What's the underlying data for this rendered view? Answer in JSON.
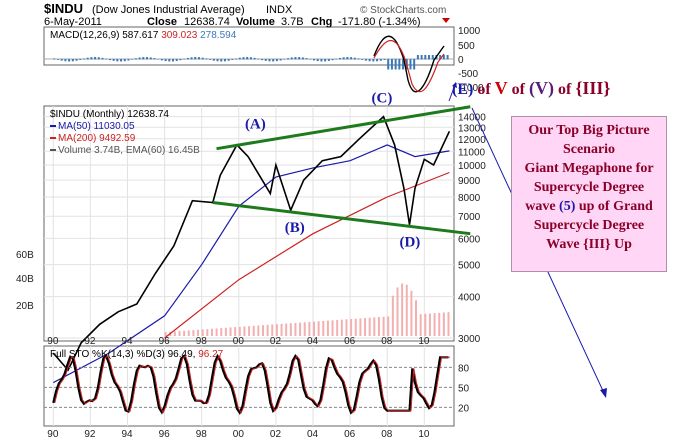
{
  "header": {
    "symbol": "$INDU",
    "name": "(Dow Jones Industrial Average)",
    "exchange": "INDX",
    "watermark": "© StockCharts.com",
    "date": "6-May-2011",
    "close_label": "Close",
    "close_value": "12638.74",
    "volume_label": "Volume",
    "volume_value": "3.7B",
    "chg_label": "Chg",
    "chg_value": "-171.80 (-1.34%)",
    "chg_color": "#cc0000"
  },
  "macd_panel": {
    "label": "MACD(12,26,9)",
    "macd": "587.617",
    "signal": "309.023",
    "hist": "278.594",
    "ticks": [
      "1000",
      "500",
      "0",
      "-500",
      "-1000"
    ]
  },
  "price_panel": {
    "legend": [
      {
        "text": "$INDU (Monthly) 12638.74",
        "color": "#000000"
      },
      {
        "text": "MA(50) 11030.05",
        "color": "#1a1aa8"
      },
      {
        "text": "MA(200) 9492.59",
        "color": "#cc2222"
      },
      {
        "text": "Volume 3.74B, EMA(60) 16.45B",
        "color": "#555555"
      }
    ],
    "price_ticks": [
      "14000",
      "13000",
      "12000",
      "11000",
      "10000",
      "9000",
      "8000",
      "7000",
      "6000",
      "5000",
      "4000",
      "3000"
    ],
    "volume_ticks": [
      "60B",
      "40B",
      "20B"
    ]
  },
  "chart_data": {
    "type": "line",
    "title": "$INDU (Dow Jones Industrial Average)",
    "x_ticks": [
      "90",
      "92",
      "94",
      "96",
      "98",
      "00",
      "02",
      "04",
      "06",
      "08",
      "10"
    ],
    "price_series": {
      "name": "$INDU (Monthly)",
      "x": [
        1990,
        1990.8,
        1991.5,
        1992.5,
        1993.5,
        1994.5,
        1995.5,
        1996.5,
        1997.5,
        1998.6,
        1999,
        1999.9,
        2000.5,
        2001.7,
        2002,
        2002.8,
        2003.5,
        2004.5,
        2005.5,
        2006.5,
        2007.8,
        2008.4,
        2008.9,
        2009.2,
        2009.5,
        2010,
        2010.5,
        2011.35
      ],
      "values": [
        2700,
        2400,
        2900,
        3300,
        3600,
        3800,
        4700,
        5700,
        7800,
        7700,
        9300,
        11500,
        10600,
        8200,
        10000,
        7300,
        9000,
        10300,
        10600,
        12000,
        14000,
        11500,
        8500,
        6600,
        8500,
        10400,
        10000,
        12638
      ]
    },
    "ma50": {
      "name": "MA(50)",
      "x": [
        1990,
        1993,
        1996,
        1998,
        2000,
        2002,
        2004,
        2006,
        2008,
        2009.5,
        2011.35
      ],
      "values": [
        2200,
        2700,
        3500,
        5000,
        7500,
        9200,
        9800,
        10300,
        11500,
        10600,
        11030
      ]
    },
    "ma200": {
      "name": "MA(200)",
      "x": [
        1996,
        2000,
        2004,
        2008,
        2011.35
      ],
      "values": [
        3000,
        4500,
        6200,
        8000,
        9492
      ]
    },
    "trendlines": [
      {
        "name": "upper",
        "x": [
          1998.8,
          2011.4
        ],
        "values": [
          11200,
          15000
        ]
      },
      {
        "name": "lower",
        "x": [
          1998.6,
          2011.4
        ],
        "values": [
          7700,
          6200
        ]
      }
    ],
    "wave_labels": [
      {
        "text": "(A)",
        "x": 1999.9,
        "y": 11700
      },
      {
        "text": "(B)",
        "x": 2002.8,
        "y": 7300
      },
      {
        "text": "(C)",
        "x": 2007.8,
        "y": 14000
      },
      {
        "text": "(D)",
        "x": 2009.2,
        "y": 6600
      }
    ],
    "xlim": [
      1989.5,
      2011.6
    ],
    "ylim_log": [
      3000,
      15500
    ],
    "log_scale": true
  },
  "sto_panel": {
    "label": "Full STO %K(14,3) %D(3)",
    "k": "96.49",
    "d": "96.27",
    "ticks": [
      "80",
      "50",
      "20"
    ]
  },
  "annotations": {
    "wave_e_prefix": "(E)",
    "of1": "of",
    "wave_v": "V",
    "of2": "of",
    "wave_vv": "(V)",
    "of3": "of",
    "wave_iii": "{III}"
  },
  "scenario_box": {
    "line1": "Our Top Big Picture",
    "line2": "Scenario",
    "line3": "Giant Megaphone for",
    "line4": "Supercycle Degree",
    "line5a": "wave",
    "line5b": "(5)",
    "line5c": "up of Grand",
    "line6": "Supercycle Degree",
    "line7": "Wave {III} Up"
  }
}
